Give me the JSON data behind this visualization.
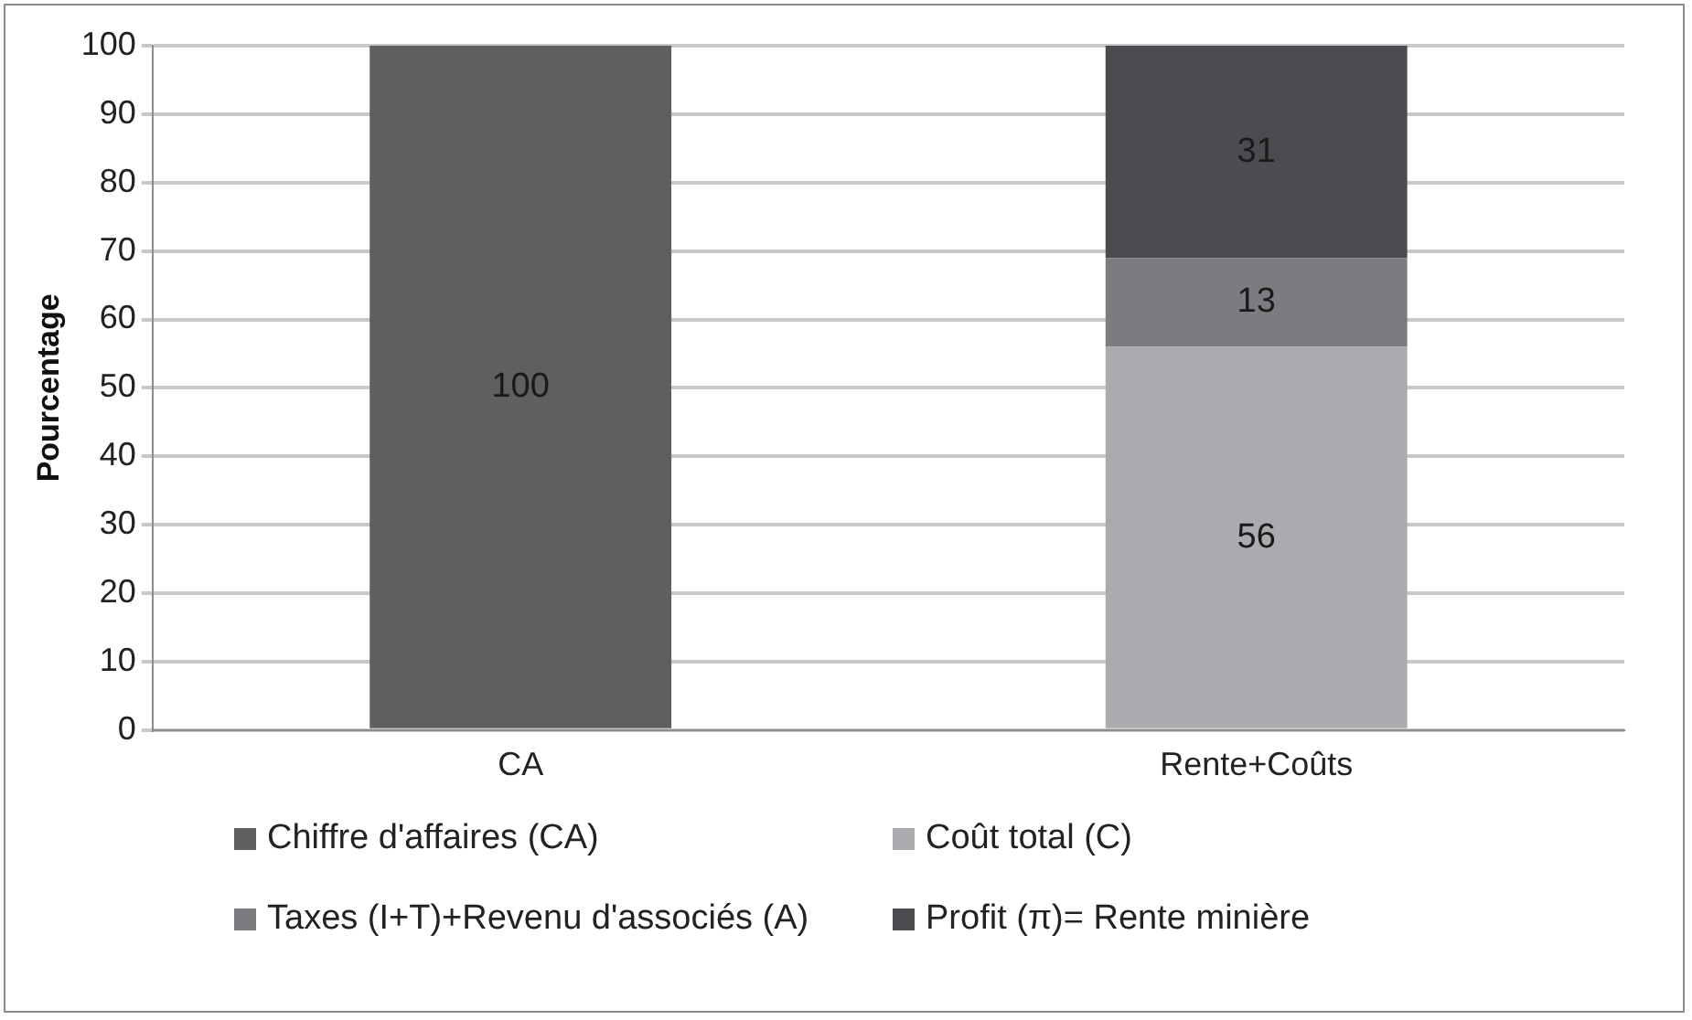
{
  "chart_data": {
    "type": "bar",
    "stacked": true,
    "ylabel": "Pourcentage",
    "categories": [
      "CA",
      "Rente+Coûts"
    ],
    "series": [
      {
        "name": "Chiffre d'affaires (CA)",
        "color": "#5f5f62",
        "values": [
          100,
          null
        ]
      },
      {
        "name": "Coût total (C)",
        "color": "#a9abae",
        "values": [
          null,
          56
        ]
      },
      {
        "name": "Taxes (I+T)+Revenu d'associés (A)",
        "color": "#7b7c7f",
        "values": [
          null,
          13
        ]
      },
      {
        "name": "Profit (π)= Rente minière",
        "color": "#4b4c50",
        "values": [
          null,
          31
        ]
      }
    ],
    "ylim": [
      0,
      100
    ],
    "yticks": [
      0,
      10,
      20,
      30,
      40,
      50,
      60,
      70,
      80,
      90,
      100
    ],
    "grid": "y",
    "legend": "bottom",
    "data_labels": true
  }
}
